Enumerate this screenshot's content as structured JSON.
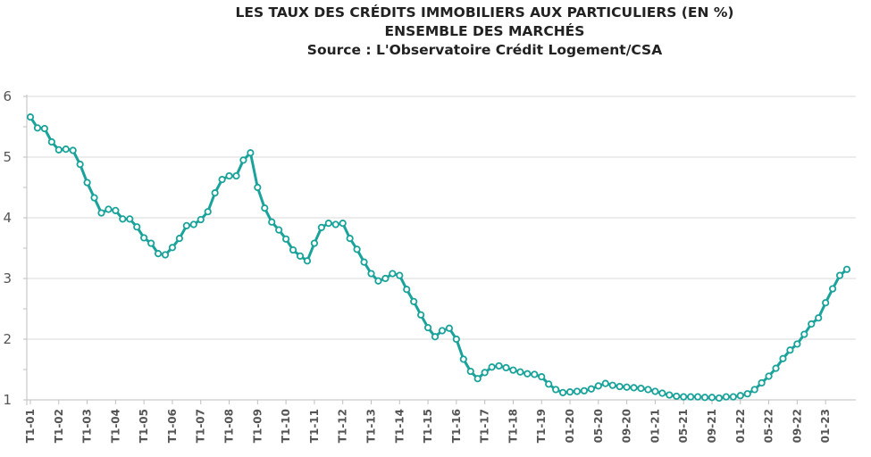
{
  "chart_data": {
    "type": "line",
    "title": "LES TAUX DES CRÉDITS IMMOBILIERS AUX PARTICULIERS (EN %)",
    "subtitle": "ENSEMBLE DES MARCHÉS",
    "source": "Source : L'Observatoire Crédit Logement/CSA",
    "ylim": [
      1,
      6
    ],
    "yticks": [
      "1",
      "2",
      "3",
      "4",
      "5",
      "6"
    ],
    "grid": "horizontal",
    "legend": "none",
    "color": "#1aa39a",
    "x_tick_labels": [
      {
        "label": "T1-01",
        "index": 0
      },
      {
        "label": "T1-02",
        "index": 4
      },
      {
        "label": "T1-03",
        "index": 8
      },
      {
        "label": "T1-04",
        "index": 12
      },
      {
        "label": "T1-05",
        "index": 16
      },
      {
        "label": "T1-06",
        "index": 20
      },
      {
        "label": "T1-07",
        "index": 24
      },
      {
        "label": "T1-08",
        "index": 28
      },
      {
        "label": "T1-09",
        "index": 32
      },
      {
        "label": "T1-10",
        "index": 36
      },
      {
        "label": "T1-11",
        "index": 40
      },
      {
        "label": "T1-12",
        "index": 44
      },
      {
        "label": "T1-13",
        "index": 48
      },
      {
        "label": "T1-14",
        "index": 52
      },
      {
        "label": "T1-15",
        "index": 56
      },
      {
        "label": "T1-16",
        "index": 60
      },
      {
        "label": "T1-17",
        "index": 64
      },
      {
        "label": "T1-18",
        "index": 68
      },
      {
        "label": "T1-19",
        "index": 72
      },
      {
        "label": "01-20",
        "index": 76
      },
      {
        "label": "05-20",
        "index": 80
      },
      {
        "label": "09-20",
        "index": 84
      },
      {
        "label": "01-21",
        "index": 88
      },
      {
        "label": "05-21",
        "index": 92
      },
      {
        "label": "09-21",
        "index": 96
      },
      {
        "label": "01-22",
        "index": 100
      },
      {
        "label": "05-22",
        "index": 104
      },
      {
        "label": "09-22",
        "index": 108
      },
      {
        "label": "01-23",
        "index": 112
      }
    ],
    "values": [
      5.66,
      5.48,
      5.47,
      5.25,
      5.12,
      5.13,
      5.11,
      4.88,
      4.58,
      4.33,
      4.08,
      4.14,
      4.12,
      3.98,
      3.98,
      3.85,
      3.67,
      3.58,
      3.41,
      3.39,
      3.51,
      3.66,
      3.87,
      3.89,
      3.97,
      4.1,
      4.41,
      4.63,
      4.69,
      4.69,
      4.95,
      5.07,
      4.5,
      4.16,
      3.93,
      3.8,
      3.65,
      3.47,
      3.37,
      3.29,
      3.58,
      3.84,
      3.91,
      3.89,
      3.91,
      3.66,
      3.48,
      3.27,
      3.08,
      2.96,
      3.0,
      3.08,
      3.05,
      2.82,
      2.62,
      2.4,
      2.19,
      2.04,
      2.14,
      2.18,
      2.0,
      1.67,
      1.47,
      1.35,
      1.45,
      1.54,
      1.56,
      1.53,
      1.49,
      1.46,
      1.43,
      1.42,
      1.38,
      1.26,
      1.17,
      1.12,
      1.13,
      1.14,
      1.15,
      1.18,
      1.23,
      1.27,
      1.24,
      1.22,
      1.21,
      1.2,
      1.19,
      1.17,
      1.14,
      1.11,
      1.08,
      1.06,
      1.05,
      1.05,
      1.05,
      1.04,
      1.04,
      1.03,
      1.05,
      1.05,
      1.07,
      1.1,
      1.17,
      1.28,
      1.39,
      1.52,
      1.68,
      1.82,
      1.92,
      2.08,
      2.25,
      2.35,
      2.6,
      2.83,
      3.05,
      3.15
    ]
  }
}
